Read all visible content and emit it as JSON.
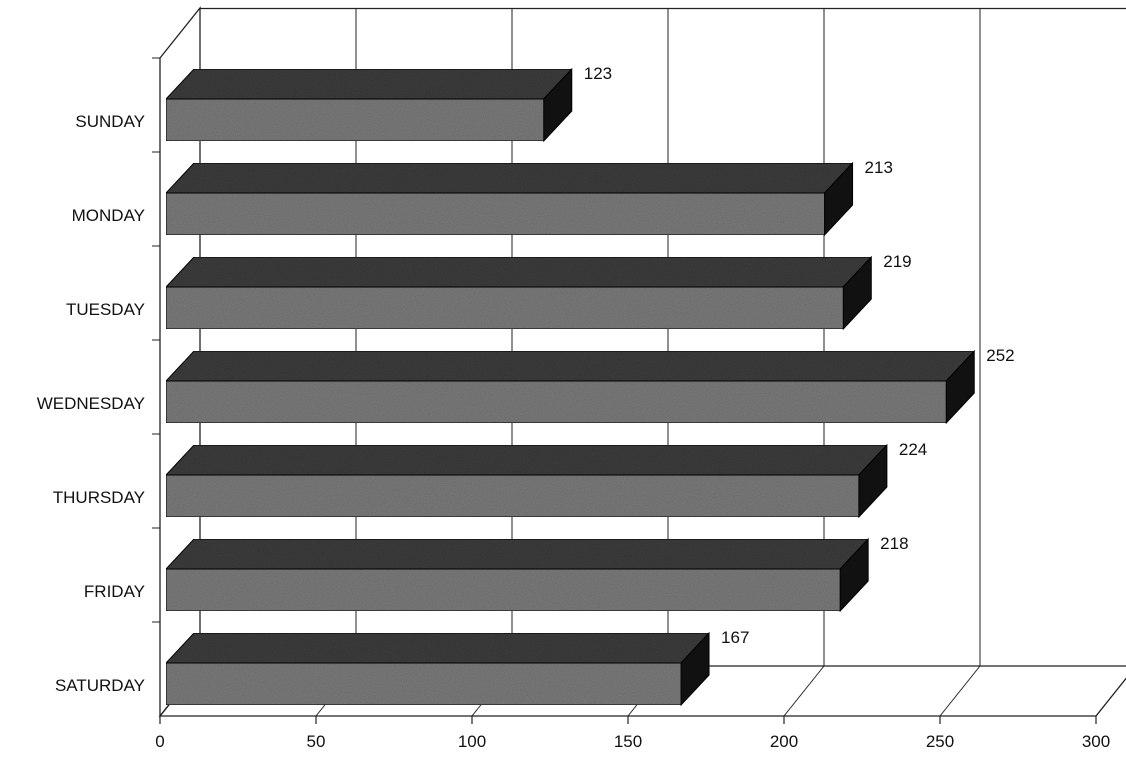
{
  "chart_data": {
    "type": "bar",
    "orientation": "horizontal",
    "style": "3d",
    "categories": [
      "SUNDAY",
      "MONDAY",
      "TUESDAY",
      "WEDNESDAY",
      "THURSDAY",
      "FRIDAY",
      "SATURDAY"
    ],
    "values": [
      123,
      213,
      219,
      252,
      224,
      218,
      167
    ],
    "title": "",
    "xlabel": "",
    "ylabel": "",
    "xlim": [
      0,
      300
    ],
    "x_ticks": [
      0,
      50,
      100,
      150,
      200,
      250,
      300
    ],
    "grid": true,
    "legend": "none",
    "colors": {
      "bar_front": "#7a7a7a",
      "bar_top": "#3c3c3c",
      "bar_side": "#111111",
      "grid": "#222222",
      "text": "#111111"
    }
  }
}
